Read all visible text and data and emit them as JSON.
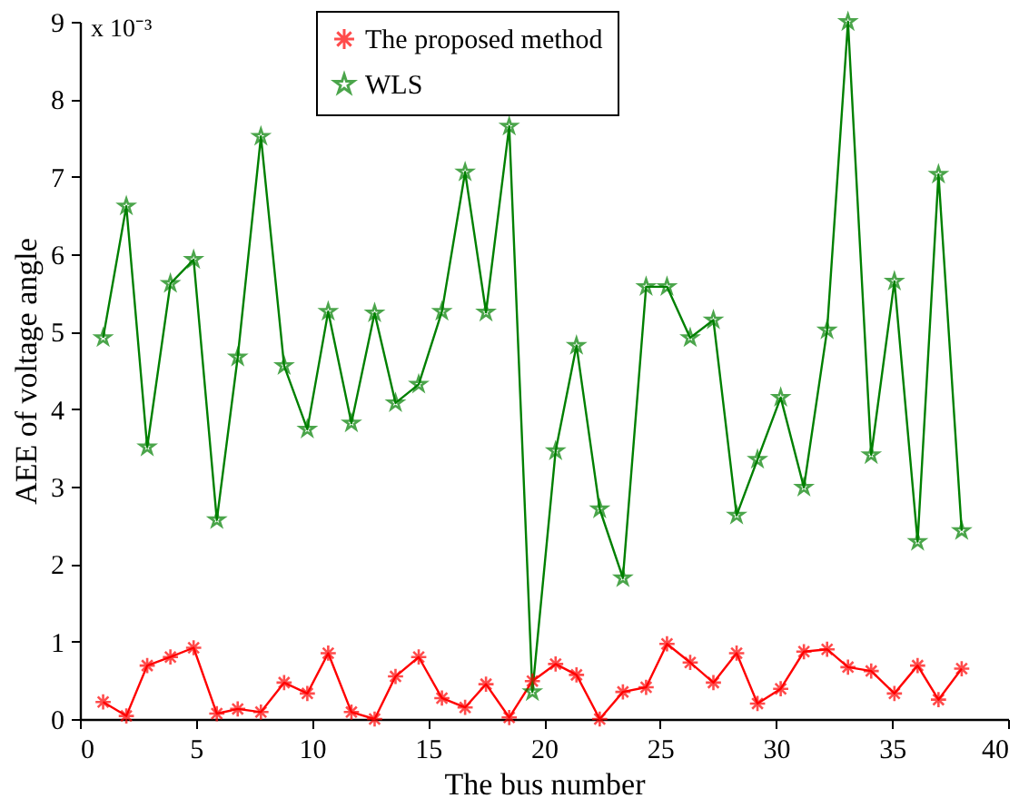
{
  "chart_data": {
    "type": "line",
    "xlabel": "The bus number",
    "ylabel": "AEE of voltage angle",
    "annotations": [
      "x 10⁻³"
    ],
    "x": [
      1.0,
      2.0,
      2.9,
      3.9,
      4.9,
      5.9,
      6.8,
      7.8,
      8.8,
      9.8,
      10.7,
      11.7,
      12.7,
      13.6,
      14.6,
      15.6,
      16.6,
      17.5,
      18.5,
      19.5,
      20.5,
      21.4,
      22.4,
      23.4,
      24.4,
      25.3,
      26.3,
      27.3,
      28.3,
      29.2,
      30.2,
      31.2,
      32.2,
      33.1,
      34.1,
      35.1,
      36.1,
      37.0,
      38.0
    ],
    "series": [
      {
        "name": "The proposed method",
        "color": "#ff0000",
        "marker": "cross",
        "values": [
          0.22,
          0.04,
          0.69,
          0.8,
          0.92,
          0.07,
          0.13,
          0.09,
          0.47,
          0.33,
          0.85,
          0.09,
          0.0,
          0.55,
          0.8,
          0.27,
          0.15,
          0.45,
          0.02,
          0.49,
          0.71,
          0.57,
          0.0,
          0.35,
          0.41,
          0.97,
          0.73,
          0.47,
          0.85,
          0.2,
          0.39,
          0.87,
          0.9,
          0.67,
          0.62,
          0.33,
          0.69,
          0.25,
          0.65
        ]
      },
      {
        "name": "WLS",
        "color": "#008000",
        "marker": "star",
        "values": [
          4.92,
          6.62,
          3.51,
          5.62,
          5.93,
          2.57,
          4.67,
          7.52,
          4.56,
          3.74,
          5.26,
          3.82,
          5.24,
          4.08,
          4.32,
          5.26,
          7.06,
          5.25,
          7.65,
          0.35,
          3.46,
          4.82,
          2.71,
          1.82,
          5.58,
          5.58,
          4.92,
          5.15,
          2.63,
          3.35,
          4.15,
          2.99,
          5.02,
          9.0,
          3.41,
          5.65,
          2.29,
          7.03,
          2.43
        ]
      }
    ],
    "xlim": [
      0,
      40
    ],
    "xticks": [
      0,
      5,
      10,
      15,
      20,
      25,
      30,
      35,
      40
    ],
    "ylim": [
      0,
      9
    ],
    "yticks": [
      0,
      1,
      2,
      3,
      4,
      5,
      6,
      7,
      8,
      9
    ],
    "grid": false,
    "legend": "top",
    "line_style": "solid"
  }
}
